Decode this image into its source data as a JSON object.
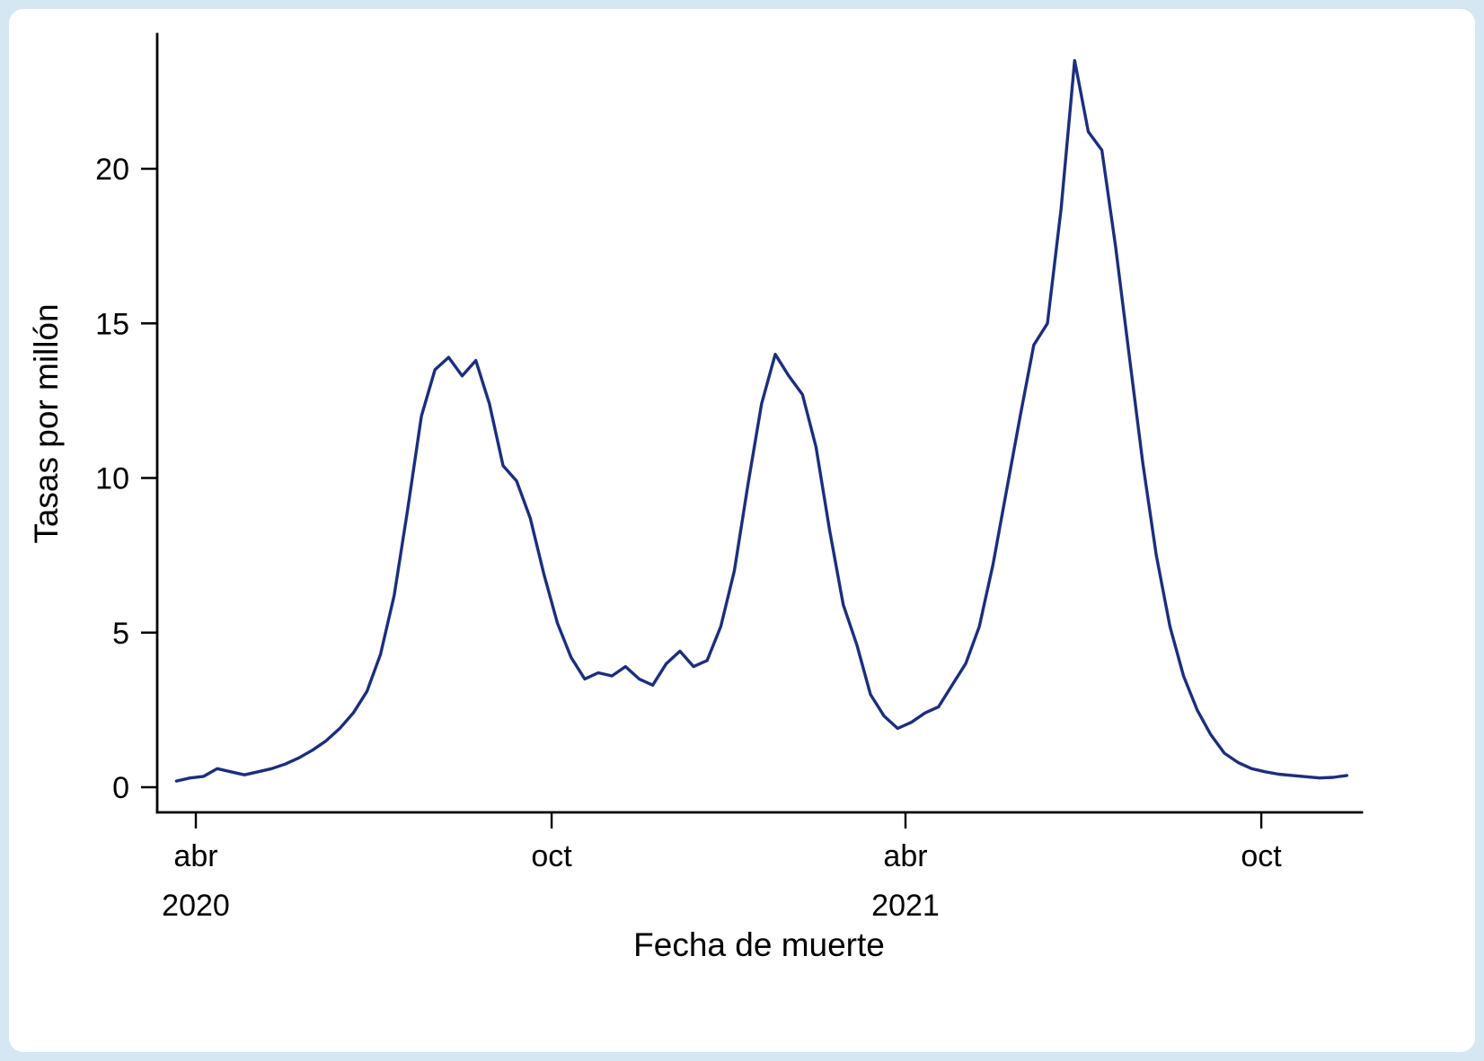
{
  "figure": {
    "frame_color": "#d4e7f3",
    "plot_background": "#ffffff"
  },
  "chart_data": {
    "type": "line",
    "xlabel": "Fecha de muerte",
    "ylabel": "Tasas por millón",
    "line_color": "#1b2e7e",
    "axis_color": "#000000",
    "grid": false,
    "legend": "none",
    "ylim": [
      0,
      24
    ],
    "yticks": [
      0,
      5,
      10,
      15,
      20
    ],
    "xticks": [
      {
        "label": "abr",
        "date": "2020-04-01"
      },
      {
        "label": "oct",
        "date": "2020-10-01"
      },
      {
        "label": "abr",
        "date": "2021-04-01"
      },
      {
        "label": "oct",
        "date": "2021-10-01"
      }
    ],
    "year_labels": [
      {
        "label": "2020",
        "date": "2020-04-01"
      },
      {
        "label": "2021",
        "date": "2021-04-01"
      }
    ],
    "x_range": [
      "2020-03-20",
      "2021-11-16"
    ],
    "points": [
      [
        "2020-03-22",
        0.2
      ],
      [
        "2020-03-29",
        0.3
      ],
      [
        "2020-04-05",
        0.35
      ],
      [
        "2020-04-12",
        0.6
      ],
      [
        "2020-04-19",
        0.5
      ],
      [
        "2020-04-26",
        0.4
      ],
      [
        "2020-05-03",
        0.5
      ],
      [
        "2020-05-10",
        0.6
      ],
      [
        "2020-05-17",
        0.75
      ],
      [
        "2020-05-24",
        0.95
      ],
      [
        "2020-05-31",
        1.2
      ],
      [
        "2020-06-07",
        1.5
      ],
      [
        "2020-06-14",
        1.9
      ],
      [
        "2020-06-21",
        2.4
      ],
      [
        "2020-06-28",
        3.1
      ],
      [
        "2020-07-05",
        4.3
      ],
      [
        "2020-07-12",
        6.2
      ],
      [
        "2020-07-19",
        9.0
      ],
      [
        "2020-07-26",
        12.0
      ],
      [
        "2020-08-02",
        13.5
      ],
      [
        "2020-08-09",
        13.9
      ],
      [
        "2020-08-16",
        13.3
      ],
      [
        "2020-08-23",
        13.8
      ],
      [
        "2020-08-30",
        12.4
      ],
      [
        "2020-09-06",
        10.4
      ],
      [
        "2020-09-13",
        9.9
      ],
      [
        "2020-09-20",
        8.7
      ],
      [
        "2020-09-27",
        6.9
      ],
      [
        "2020-10-04",
        5.3
      ],
      [
        "2020-10-11",
        4.2
      ],
      [
        "2020-10-18",
        3.5
      ],
      [
        "2020-10-25",
        3.7
      ],
      [
        "2020-11-01",
        3.6
      ],
      [
        "2020-11-08",
        3.9
      ],
      [
        "2020-11-15",
        3.5
      ],
      [
        "2020-11-22",
        3.3
      ],
      [
        "2020-11-29",
        4.0
      ],
      [
        "2020-12-06",
        4.4
      ],
      [
        "2020-12-13",
        3.9
      ],
      [
        "2020-12-20",
        4.1
      ],
      [
        "2020-12-27",
        5.2
      ],
      [
        "2021-01-03",
        7.0
      ],
      [
        "2021-01-10",
        9.8
      ],
      [
        "2021-01-17",
        12.4
      ],
      [
        "2021-01-24",
        14.0
      ],
      [
        "2021-01-31",
        13.3
      ],
      [
        "2021-02-07",
        12.7
      ],
      [
        "2021-02-14",
        11.0
      ],
      [
        "2021-02-21",
        8.3
      ],
      [
        "2021-02-28",
        5.9
      ],
      [
        "2021-03-07",
        4.6
      ],
      [
        "2021-03-14",
        3.0
      ],
      [
        "2021-03-21",
        2.3
      ],
      [
        "2021-03-28",
        1.9
      ],
      [
        "2021-04-04",
        2.1
      ],
      [
        "2021-04-11",
        2.4
      ],
      [
        "2021-04-18",
        2.6
      ],
      [
        "2021-04-25",
        3.3
      ],
      [
        "2021-05-02",
        4.0
      ],
      [
        "2021-05-09",
        5.2
      ],
      [
        "2021-05-16",
        7.2
      ],
      [
        "2021-05-23",
        9.6
      ],
      [
        "2021-05-30",
        12.0
      ],
      [
        "2021-06-06",
        14.3
      ],
      [
        "2021-06-13",
        15.0
      ],
      [
        "2021-06-20",
        18.7
      ],
      [
        "2021-06-27",
        23.5
      ],
      [
        "2021-07-04",
        21.2
      ],
      [
        "2021-07-11",
        20.6
      ],
      [
        "2021-07-18",
        17.5
      ],
      [
        "2021-07-25",
        14.0
      ],
      [
        "2021-08-01",
        10.5
      ],
      [
        "2021-08-08",
        7.5
      ],
      [
        "2021-08-15",
        5.2
      ],
      [
        "2021-08-22",
        3.6
      ],
      [
        "2021-08-29",
        2.5
      ],
      [
        "2021-09-05",
        1.7
      ],
      [
        "2021-09-12",
        1.1
      ],
      [
        "2021-09-19",
        0.8
      ],
      [
        "2021-09-26",
        0.6
      ],
      [
        "2021-10-03",
        0.5
      ],
      [
        "2021-10-10",
        0.42
      ],
      [
        "2021-10-17",
        0.38
      ],
      [
        "2021-10-24",
        0.34
      ],
      [
        "2021-10-31",
        0.3
      ],
      [
        "2021-11-07",
        0.32
      ],
      [
        "2021-11-14",
        0.38
      ]
    ]
  }
}
